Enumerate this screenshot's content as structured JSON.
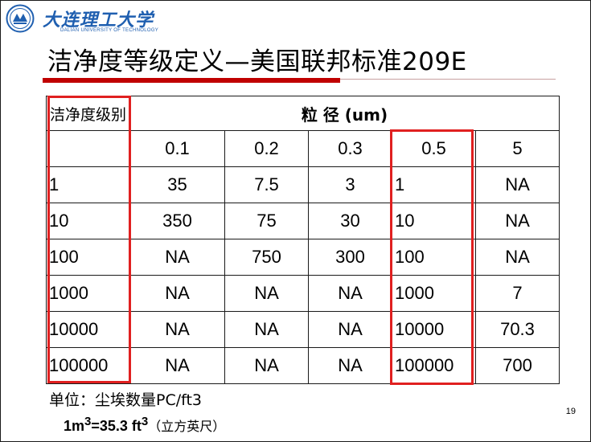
{
  "header": {
    "university_cn": "大连理工大学",
    "university_en": "DALIAN UNIVERSITY OF TECHNOLOGY"
  },
  "slide": {
    "title": "洁净度等级定义—美国联邦标准209E",
    "page_number": "19"
  },
  "table": {
    "corner_label": "洁净度级别",
    "particle_size_label": "粒 径 (um)",
    "sizes": [
      "0.1",
      "0.2",
      "0.3",
      "0.5",
      "5"
    ],
    "rows": [
      {
        "level": "1",
        "values": [
          "35",
          "7.5",
          "3",
          "1",
          "NA"
        ]
      },
      {
        "level": "10",
        "values": [
          "350",
          "75",
          "30",
          "10",
          "NA"
        ]
      },
      {
        "level": "100",
        "values": [
          "NA",
          "750",
          "300",
          "100",
          "NA"
        ]
      },
      {
        "level": "1000",
        "values": [
          "NA",
          "NA",
          "NA",
          "1000",
          "7"
        ]
      },
      {
        "level": "10000",
        "values": [
          "NA",
          "NA",
          "NA",
          "10000",
          "70.3"
        ]
      },
      {
        "level": "100000",
        "values": [
          "NA",
          "NA",
          "NA",
          "100000",
          "700"
        ]
      }
    ]
  },
  "footer": {
    "unit": "单位：尘埃数量PC/ft3",
    "conversion_lhs": "1m",
    "conversion_exp1": "3",
    "conversion_mid": "=35.3 ft",
    "conversion_exp2": "3",
    "conversion_note": "（立方英尺）"
  },
  "colors": {
    "brand_blue": "#1f5fb0",
    "title_bar_red": "#c00000",
    "highlight_red": "#e02020"
  }
}
